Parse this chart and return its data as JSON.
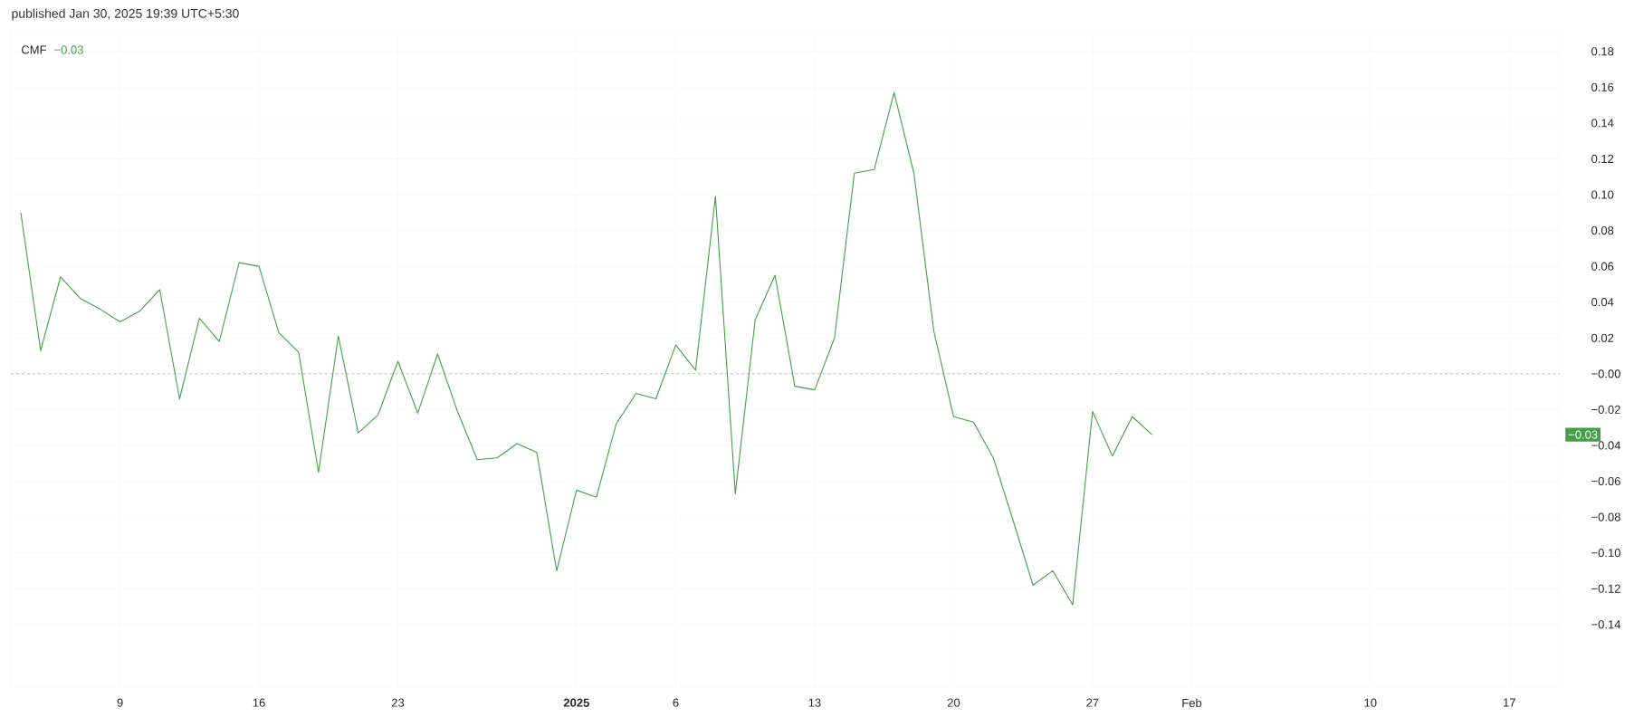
{
  "chart_data": {
    "type": "line",
    "title": "published Jan 30, 2025 19:39 UTC+5:30",
    "x": [
      "2024-12-04",
      "2024-12-05",
      "2024-12-06",
      "2024-12-07",
      "2024-12-08",
      "2024-12-09",
      "2024-12-10",
      "2024-12-11",
      "2024-12-12",
      "2024-12-13",
      "2024-12-14",
      "2024-12-15",
      "2024-12-16",
      "2024-12-17",
      "2024-12-18",
      "2024-12-19",
      "2024-12-20",
      "2024-12-21",
      "2024-12-22",
      "2024-12-23",
      "2024-12-24",
      "2024-12-25",
      "2024-12-26",
      "2024-12-27",
      "2024-12-28",
      "2024-12-29",
      "2024-12-30",
      "2024-12-31",
      "2025-01-01",
      "2025-01-02",
      "2025-01-03",
      "2025-01-04",
      "2025-01-05",
      "2025-01-06",
      "2025-01-07",
      "2025-01-08",
      "2025-01-09",
      "2025-01-10",
      "2025-01-11",
      "2025-01-12",
      "2025-01-13",
      "2025-01-14",
      "2025-01-15",
      "2025-01-16",
      "2025-01-17",
      "2025-01-18",
      "2025-01-19",
      "2025-01-20",
      "2025-01-21",
      "2025-01-22",
      "2025-01-23",
      "2025-01-24",
      "2025-01-25",
      "2025-01-26",
      "2025-01-27",
      "2025-01-28",
      "2025-01-29",
      "2025-01-30"
    ],
    "series": [
      {
        "name": "CMF",
        "color": "#43a047",
        "values": [
          0.09,
          0.013,
          0.054,
          0.042,
          0.036,
          0.029,
          0.035,
          0.047,
          -0.014,
          0.031,
          0.018,
          0.062,
          0.06,
          0.023,
          0.012,
          -0.055,
          0.021,
          -0.033,
          -0.023,
          0.007,
          -0.022,
          0.011,
          -0.021,
          -0.048,
          -0.047,
          -0.039,
          -0.044,
          -0.11,
          -0.065,
          -0.069,
          -0.028,
          -0.011,
          -0.014,
          0.016,
          0.002,
          0.099,
          -0.067,
          0.03,
          0.055,
          -0.007,
          -0.009,
          0.02,
          0.112,
          0.114,
          0.157,
          0.112,
          0.024,
          -0.024,
          -0.027,
          -0.047,
          -0.082,
          -0.118,
          -0.11,
          -0.129,
          -0.021,
          -0.046,
          -0.024,
          -0.034
        ]
      }
    ],
    "xlim": [
      "2024-12-03T12:00",
      "2025-02-19T13:00"
    ],
    "xticks": [
      {
        "value": "2024-12-09",
        "label": "9"
      },
      {
        "value": "2024-12-16",
        "label": "16"
      },
      {
        "value": "2024-12-23",
        "label": "23"
      },
      {
        "value": "2025-01-01",
        "label": "**2025**"
      },
      {
        "value": "2025-01-06",
        "label": "6"
      },
      {
        "value": "2025-01-13",
        "label": "13"
      },
      {
        "value": "2025-01-20",
        "label": "20"
      },
      {
        "value": "2025-01-27",
        "label": "27"
      },
      {
        "value": "2025-02-01",
        "label": "Feb"
      },
      {
        "value": "2025-02-10",
        "label": "10"
      },
      {
        "value": "2025-02-17",
        "label": "17"
      }
    ],
    "ylim": [
      -0.175,
      0.191
    ],
    "yticks": [
      {
        "value": 0.18,
        "label": "0.18"
      },
      {
        "value": 0.16,
        "label": "0.16"
      },
      {
        "value": 0.14,
        "label": "0.14"
      },
      {
        "value": 0.12,
        "label": "0.12"
      },
      {
        "value": 0.1,
        "label": "0.10"
      },
      {
        "value": 0.08,
        "label": "0.08"
      },
      {
        "value": 0.06,
        "label": "0.06"
      },
      {
        "value": 0.04,
        "label": "0.04"
      },
      {
        "value": 0.02,
        "label": "0.02"
      },
      {
        "value": 0,
        "label": "−0.00"
      },
      {
        "value": -0.02,
        "label": "−0.02"
      },
      {
        "value": -0.04,
        "label": "−0.04"
      },
      {
        "value": -0.06,
        "label": "−0.06"
      },
      {
        "value": -0.08,
        "label": "−0.08"
      },
      {
        "value": -0.1,
        "label": "−0.10"
      },
      {
        "value": -0.12,
        "label": "−0.12"
      },
      {
        "value": -0.14,
        "label": "−0.14"
      }
    ],
    "ref_lines": [
      {
        "axis": "y",
        "value": 0,
        "color": "#5d606b",
        "line_style": "dashed"
      }
    ],
    "annotations": [
      "−0.03",
      "−0.03"
    ],
    "grid": true,
    "legend": "top left"
  }
}
